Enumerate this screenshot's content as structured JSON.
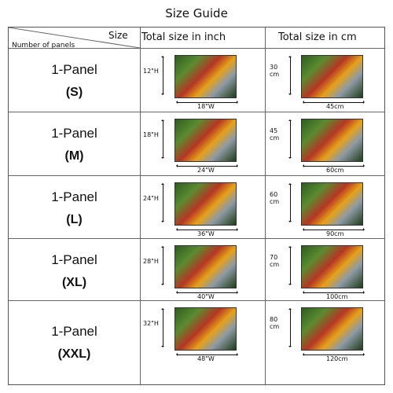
{
  "title": "Size Guide",
  "header": {
    "size": "Size",
    "number_of_panels": "Number of panels",
    "inch": "Total size in inch",
    "cm": "Total size in cm"
  },
  "rows": [
    {
      "panel": "1-Panel",
      "size": "(S)",
      "inch_h": "12\"H",
      "inch_w": "18\"W",
      "cm_h": "30\ncm",
      "cm_w": "45cm"
    },
    {
      "panel": "1-Panel",
      "size": "(M)",
      "inch_h": "18\"H",
      "inch_w": "24\"W",
      "cm_h": "45\ncm",
      "cm_w": "60cm"
    },
    {
      "panel": "1-Panel",
      "size": "(L)",
      "inch_h": "24\"H",
      "inch_w": "36\"W",
      "cm_h": "60\ncm",
      "cm_w": "90cm"
    },
    {
      "panel": "1-Panel",
      "size": "(XL)",
      "inch_h": "28\"H",
      "inch_w": "40\"W",
      "cm_h": "70\ncm",
      "cm_w": "100cm"
    },
    {
      "panel": "1-Panel",
      "size": "(XXL)",
      "inch_h": "32\"H",
      "inch_w": "48\"W",
      "cm_h": "80\ncm",
      "cm_w": "120cm"
    }
  ],
  "colors": {
    "grid": "#666666",
    "text": "#111111"
  },
  "icons": {
    "product_thumbnail": "spice-spoons-painting-thumbnail",
    "dimension_arrow": "double-arrow"
  }
}
